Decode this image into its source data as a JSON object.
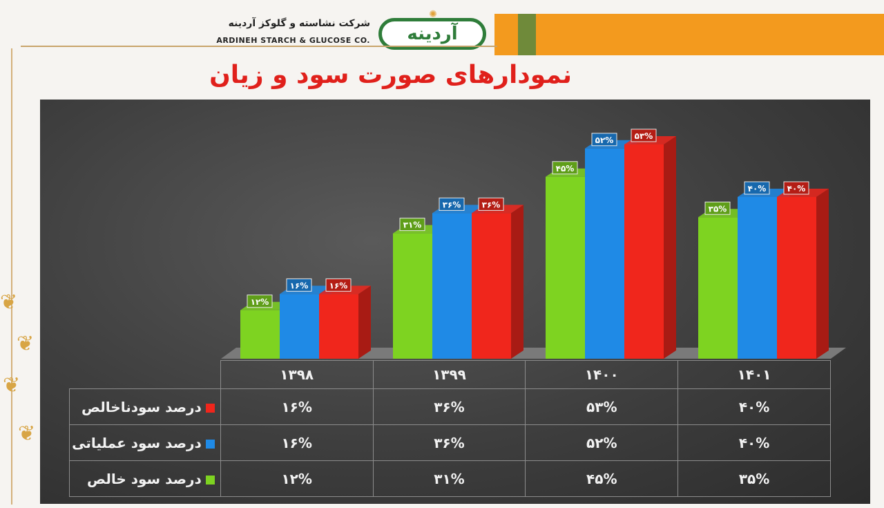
{
  "header": {
    "logo_text": "آردینه",
    "company_fa": "شرکت نشاسته و گلوکز آردینه",
    "company_en": "ARDINEH STARCH & GLUCOSE CO.",
    "title": "نمودارهای صورت سود و زیان"
  },
  "colors": {
    "net": "#f0261c",
    "operating": "#1f8ae6",
    "gross": "#7ed321"
  },
  "chart_data": {
    "type": "bar",
    "title": "نمودارهای صورت سود و زیان",
    "categories": [
      "۱۳۹۸",
      "۱۳۹۹",
      "۱۴۰۰",
      "۱۴۰۱"
    ],
    "series": [
      {
        "name": "درصد سود خالص",
        "values": [
          12,
          31,
          45,
          35
        ],
        "labels": [
          "۱۲%",
          "۳۱%",
          "۴۵%",
          "۳۵%"
        ],
        "color": "#7ed321"
      },
      {
        "name": "درصد سود عملیاتی",
        "values": [
          16,
          36,
          52,
          40
        ],
        "labels": [
          "۱۶%",
          "۳۶%",
          "۵۲%",
          "۴۰%"
        ],
        "color": "#1f8ae6"
      },
      {
        "name": "درصد سودناخالص",
        "values": [
          16,
          36,
          53,
          40
        ],
        "labels": [
          "۱۶%",
          "۳۶%",
          "۵۳%",
          "۴۰%"
        ],
        "color": "#f0261c"
      }
    ],
    "ylim": [
      0,
      60
    ],
    "table_rows_order": [
      2,
      1,
      0
    ],
    "legend": "table-left"
  }
}
